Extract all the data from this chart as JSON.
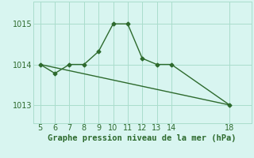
{
  "line1_x": [
    5,
    6,
    7,
    8,
    9,
    10,
    11,
    12,
    13,
    14,
    18
  ],
  "line1_y": [
    1014.0,
    1013.78,
    1014.0,
    1014.0,
    1014.32,
    1015.0,
    1015.0,
    1014.15,
    1014.0,
    1014.0,
    1013.0
  ],
  "line2_x": [
    5,
    18
  ],
  "line2_y": [
    1014.0,
    1013.0
  ],
  "line_color": "#2d6a2d",
  "bg_color": "#d8f5f0",
  "grid_color": "#aaddcc",
  "xlabel": "Graphe pression niveau de la mer (hPa)",
  "xlabel_fontsize": 7.5,
  "ylim": [
    1012.55,
    1015.55
  ],
  "xlim": [
    4.5,
    19.5
  ],
  "yticks": [
    1013,
    1014,
    1015
  ],
  "xticks": [
    5,
    6,
    7,
    8,
    9,
    10,
    11,
    12,
    13,
    14,
    18
  ],
  "tick_fontsize": 7.0,
  "marker": "D",
  "markersize": 2.5,
  "linewidth": 1.0
}
